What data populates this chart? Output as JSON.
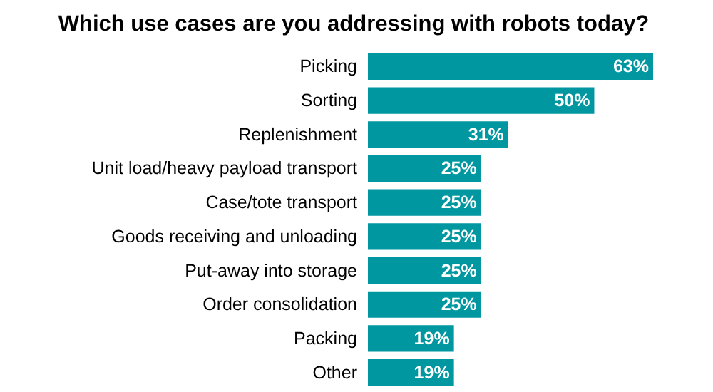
{
  "chart_data": {
    "type": "bar",
    "orientation": "horizontal",
    "title": "Which use cases are you addressing with robots today?",
    "categories": [
      "Picking",
      "Sorting",
      "Replenishment",
      "Unit load/heavy payload transport",
      "Case/tote transport",
      "Goods receiving and unloading",
      "Put-away into storage",
      "Order consolidation",
      "Packing",
      "Other"
    ],
    "values": [
      63,
      50,
      31,
      25,
      25,
      25,
      25,
      25,
      19,
      19
    ],
    "value_labels": [
      "63%",
      "50%",
      "31%",
      "25%",
      "25%",
      "25%",
      "25%",
      "25%",
      "19%",
      "19%"
    ],
    "color": "#0097a0"
  }
}
